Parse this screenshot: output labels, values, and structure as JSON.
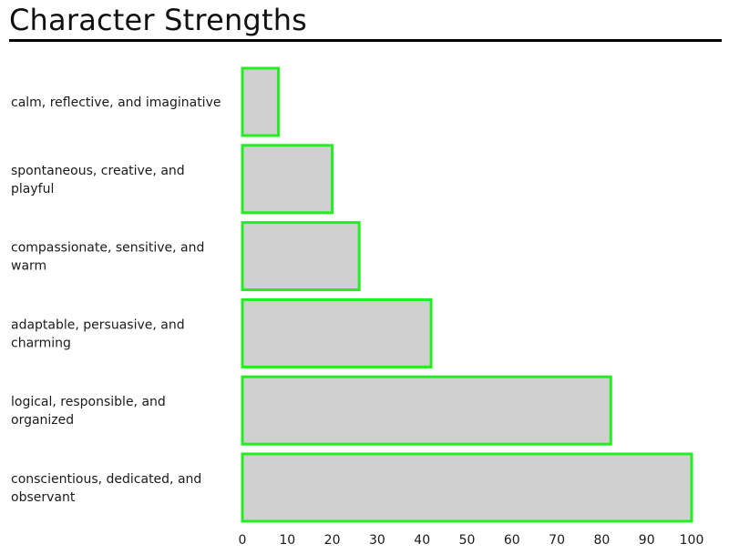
{
  "chart_data": {
    "type": "bar",
    "orientation": "horizontal",
    "title": "Character Strengths",
    "categories": [
      [
        "calm, reflective, and imaginative"
      ],
      [
        "spontaneous, creative, and",
        "playful"
      ],
      [
        "compassionate, sensitive, and",
        "warm"
      ],
      [
        "adaptable, persuasive, and",
        "charming"
      ],
      [
        "logical, responsible, and",
        "organized"
      ],
      [
        "conscientious, dedicated, and",
        "observant"
      ]
    ],
    "values": [
      8,
      20,
      26,
      42,
      82,
      100
    ],
    "xlim": [
      0,
      100
    ],
    "xticks": [
      "0",
      "10",
      "20",
      "30",
      "40",
      "50",
      "60",
      "70",
      "80",
      "90",
      "100"
    ],
    "grid": false,
    "legend": "none",
    "colors": {
      "bar_fill": "#d0d0d0",
      "bar_stroke": "#22ee22",
      "text": "#1a1a1a"
    }
  }
}
